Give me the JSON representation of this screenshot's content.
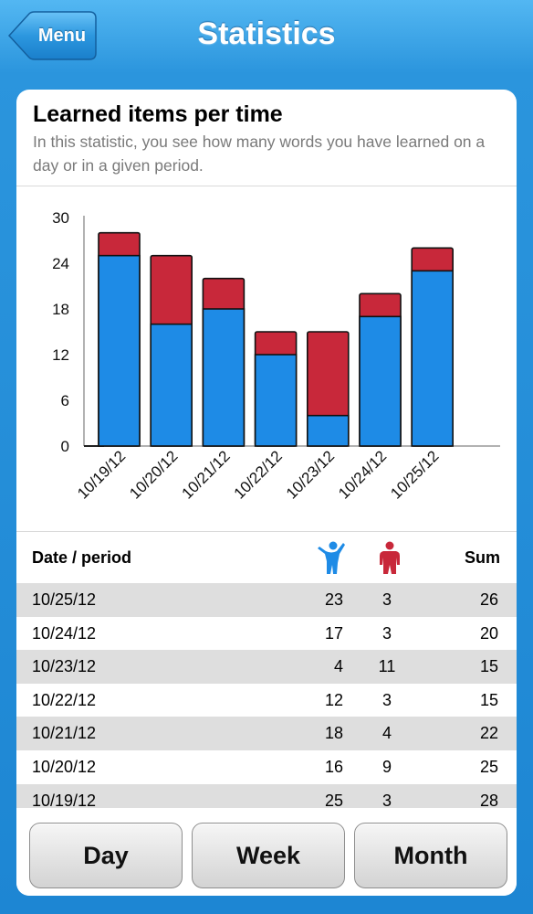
{
  "header": {
    "menu_label": "Menu",
    "title": "Statistics"
  },
  "card": {
    "title": "Learned items per time",
    "description": "In this statistic, you see how many words you have learned on a day or in a given period."
  },
  "colors": {
    "learned": "#1e8be6",
    "forgotten": "#c8283a",
    "accent": "#2b95dd"
  },
  "chart_data": {
    "type": "bar",
    "stacked": true,
    "categories": [
      "10/19/12",
      "10/20/12",
      "10/21/12",
      "10/22/12",
      "10/23/12",
      "10/24/12",
      "10/25/12"
    ],
    "series": [
      {
        "values": [
          25,
          16,
          18,
          12,
          4,
          17,
          23
        ],
        "color": "#1e8be6"
      },
      {
        "values": [
          3,
          9,
          4,
          3,
          11,
          3,
          3
        ],
        "color": "#c8283a"
      }
    ],
    "yticks": [
      "0",
      "6",
      "12",
      "18",
      "24",
      "30"
    ],
    "ylim": [
      0,
      30
    ],
    "grid": false
  },
  "table": {
    "col_date": "Date / period",
    "col_sum": "Sum",
    "icon_learned": "person-arms-up-icon",
    "icon_forgotten": "person-standing-icon",
    "rows": [
      {
        "date": "10/25/12",
        "learned": "23",
        "forgotten": "3",
        "sum": "26"
      },
      {
        "date": "10/24/12",
        "learned": "17",
        "forgotten": "3",
        "sum": "20"
      },
      {
        "date": "10/23/12",
        "learned": "4",
        "forgotten": "11",
        "sum": "15"
      },
      {
        "date": "10/22/12",
        "learned": "12",
        "forgotten": "3",
        "sum": "15"
      },
      {
        "date": "10/21/12",
        "learned": "18",
        "forgotten": "4",
        "sum": "22"
      },
      {
        "date": "10/20/12",
        "learned": "16",
        "forgotten": "9",
        "sum": "25"
      },
      {
        "date": "10/19/12",
        "learned": "25",
        "forgotten": "3",
        "sum": "28"
      }
    ]
  },
  "buttons": {
    "day": "Day",
    "week": "Week",
    "month": "Month"
  }
}
